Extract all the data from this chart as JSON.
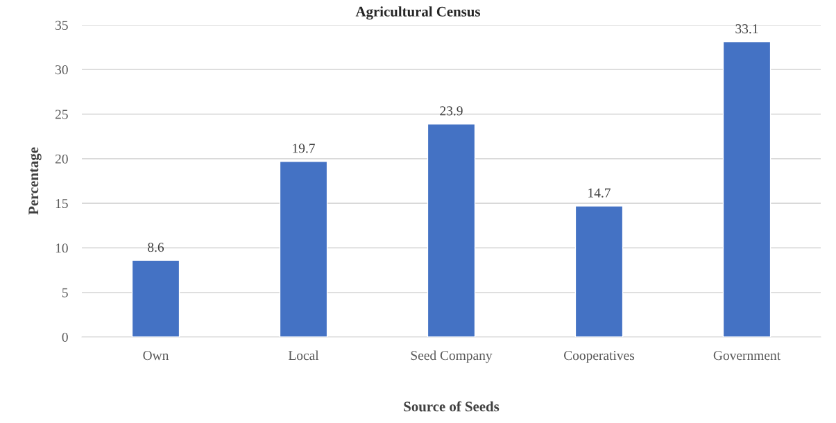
{
  "chart_data": {
    "type": "bar",
    "title": "Agricultural Census",
    "xlabel": "Source of Seeds",
    "ylabel": "Percentage",
    "categories": [
      "Own",
      "Local",
      "Seed Company",
      "Cooperatives",
      "Government"
    ],
    "values": [
      8.6,
      19.7,
      23.9,
      14.7,
      33.1
    ],
    "color": "#4472c4",
    "ylim": [
      0,
      35
    ],
    "yticks": [
      0,
      5,
      10,
      15,
      20,
      25,
      30,
      35
    ],
    "grid": "y",
    "data_labels": true
  }
}
